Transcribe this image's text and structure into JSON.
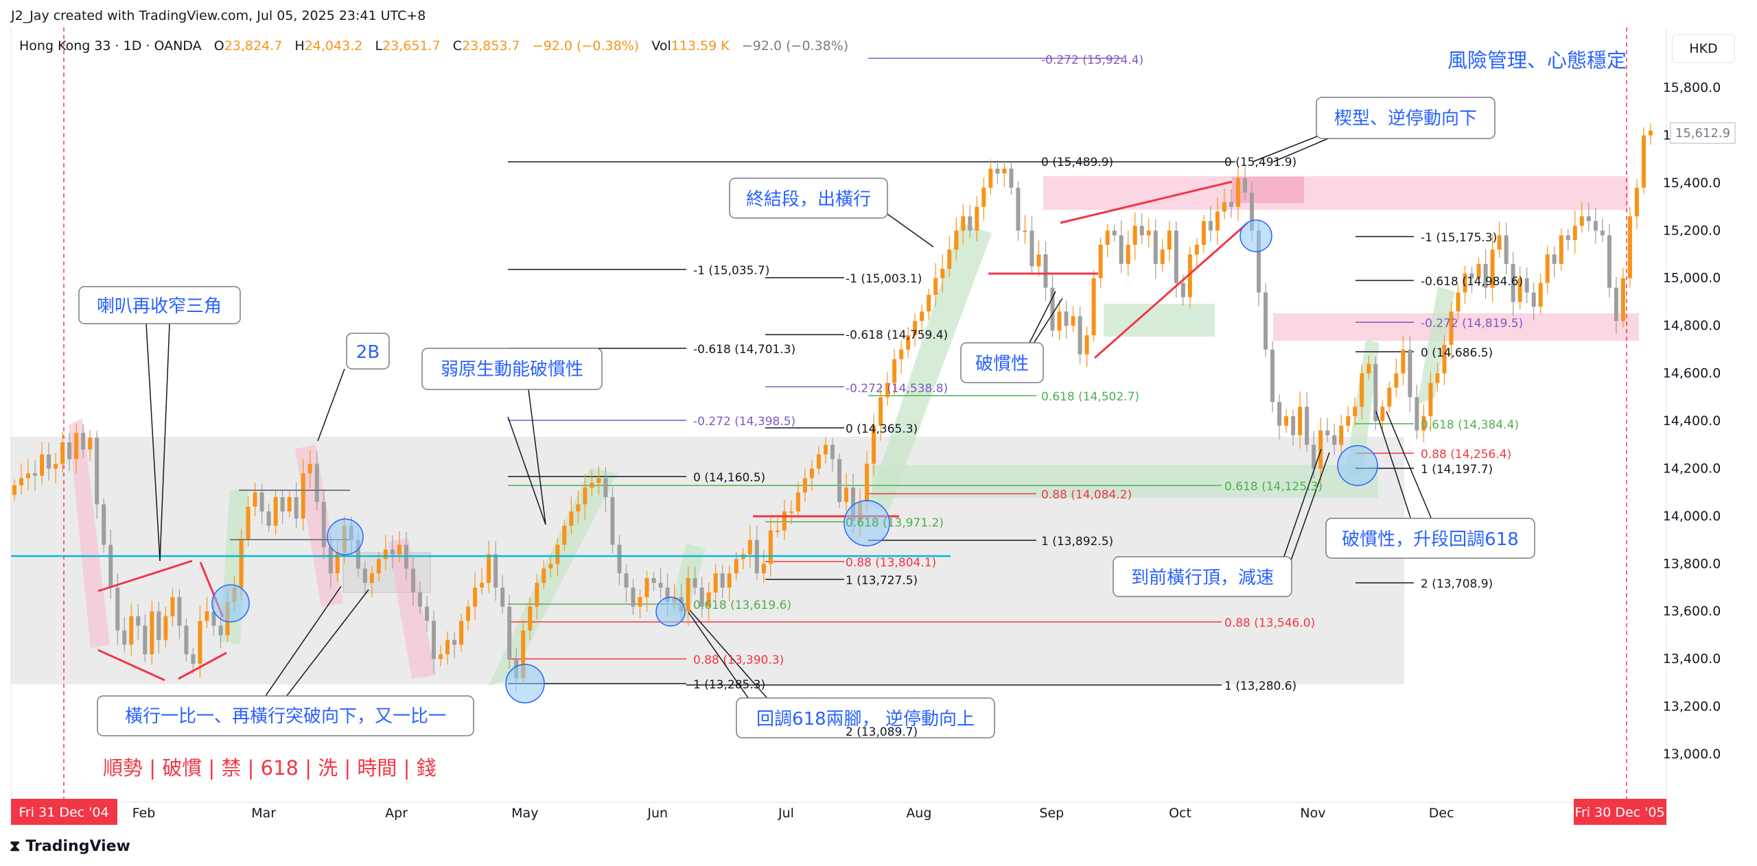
{
  "header": {
    "created": "J2_Jay created with TradingView.com, Jul 05, 2025 23:41 UTC+8",
    "symbol": "Hong Kong 33 · 1D · OANDA",
    "open_label": "O",
    "open": "23,824.7",
    "high_label": "H",
    "high": "24,043.2",
    "low_label": "L",
    "low": "23,651.7",
    "close_label": "C",
    "close": "23,853.7",
    "change": "−92.0 (−0.38%)",
    "vol_label": "Vol",
    "vol": "113.59 K",
    "vol_change": "−92.0 (−0.38%)"
  },
  "currency": "HKD",
  "footer": {
    "logo_text": "TradingView"
  },
  "colors": {
    "up": "#f7931a",
    "down": "#9e9e9e",
    "annotation_text": "#2962ff",
    "red": "#f23645",
    "green": "#4caf50",
    "purple": "#7e57c2",
    "cyan": "#00bcd4"
  },
  "chart_data": {
    "type": "candlestick",
    "ylim": [
      12850,
      15950
    ],
    "y_ticks": [
      "15,800.0",
      "15,600.0",
      "15,400.0",
      "15,200.0",
      "15,000.0",
      "14,800.0",
      "14,600.0",
      "14,400.0",
      "14,200.0",
      "14,000.0",
      "13,800.0",
      "13,600.0",
      "13,400.0",
      "13,200.0",
      "13,000.0"
    ],
    "y_tick_values": [
      15800,
      15600,
      15400,
      15200,
      15000,
      14800,
      14600,
      14400,
      14200,
      14000,
      13800,
      13600,
      13400,
      13200,
      13000
    ],
    "x_ticks": [
      "Feb",
      "Mar",
      "Apr",
      "May",
      "Jun",
      "Jul",
      "Aug",
      "Sep",
      "Oct",
      "Nov",
      "Dec"
    ],
    "x_tick_days": [
      31,
      59,
      90,
      120,
      151,
      181,
      212,
      243,
      273,
      304,
      334
    ],
    "start_label": "Fri 31 Dec '04",
    "end_label": "Fri 30 Dec '05",
    "last_price": "15,612.9",
    "last_value": 15612.9,
    "closes": [
      [
        0,
        14130
      ],
      [
        1,
        14160
      ],
      [
        2,
        14180
      ],
      [
        3,
        14170
      ],
      [
        4,
        14260
      ],
      [
        5,
        14200
      ],
      [
        6,
        14220
      ],
      [
        7,
        14310
      ],
      [
        8,
        14240
      ],
      [
        9,
        14350
      ],
      [
        10,
        14280
      ],
      [
        11,
        14330
      ],
      [
        12,
        14050
      ],
      [
        13,
        13880
      ],
      [
        14,
        13700
      ],
      [
        15,
        13520
      ],
      [
        16,
        13460
      ],
      [
        17,
        13580
      ],
      [
        18,
        13540
      ],
      [
        19,
        13420
      ],
      [
        20,
        13600
      ],
      [
        21,
        13480
      ],
      [
        22,
        13580
      ],
      [
        23,
        13660
      ],
      [
        24,
        13540
      ],
      [
        25,
        13420
      ],
      [
        26,
        13380
      ],
      [
        27,
        13560
      ],
      [
        28,
        13600
      ],
      [
        29,
        13540
      ],
      [
        30,
        13500
      ],
      [
        31,
        13640
      ],
      [
        32,
        13700
      ],
      [
        33,
        13900
      ],
      [
        34,
        14040
      ],
      [
        35,
        14100
      ],
      [
        36,
        14020
      ],
      [
        37,
        13960
      ],
      [
        38,
        14080
      ],
      [
        39,
        14020
      ],
      [
        40,
        14080
      ],
      [
        41,
        13990
      ],
      [
        42,
        14180
      ],
      [
        43,
        14220
      ],
      [
        44,
        14060
      ],
      [
        45,
        13870
      ],
      [
        46,
        13760
      ],
      [
        47,
        13850
      ],
      [
        48,
        13960
      ],
      [
        49,
        13900
      ],
      [
        50,
        13780
      ],
      [
        51,
        13720
      ],
      [
        52,
        13760
      ],
      [
        53,
        13820
      ],
      [
        54,
        13860
      ],
      [
        55,
        13840
      ],
      [
        56,
        13880
      ],
      [
        57,
        13780
      ],
      [
        58,
        13680
      ],
      [
        59,
        13620
      ],
      [
        60,
        13560
      ],
      [
        61,
        13400
      ],
      [
        62,
        13420
      ],
      [
        63,
        13480
      ],
      [
        64,
        13460
      ],
      [
        65,
        13560
      ],
      [
        66,
        13620
      ],
      [
        67,
        13700
      ],
      [
        68,
        13720
      ],
      [
        69,
        13840
      ],
      [
        70,
        13700
      ],
      [
        71,
        13620
      ],
      [
        72,
        13400
      ],
      [
        73,
        13320
      ],
      [
        74,
        13520
      ],
      [
        75,
        13620
      ],
      [
        76,
        13720
      ],
      [
        77,
        13780
      ],
      [
        78,
        13800
      ],
      [
        79,
        13880
      ],
      [
        80,
        13960
      ],
      [
        81,
        14020
      ],
      [
        82,
        14050
      ],
      [
        83,
        14120
      ],
      [
        84,
        14140
      ],
      [
        85,
        14160
      ],
      [
        86,
        14080
      ],
      [
        87,
        13880
      ],
      [
        88,
        13760
      ],
      [
        89,
        13700
      ],
      [
        90,
        13620
      ],
      [
        91,
        13660
      ],
      [
        92,
        13740
      ],
      [
        93,
        13720
      ],
      [
        94,
        13700
      ],
      [
        95,
        13640
      ],
      [
        96,
        13660
      ],
      [
        97,
        13600
      ],
      [
        98,
        13740
      ],
      [
        99,
        13700
      ],
      [
        100,
        13620
      ],
      [
        101,
        13680
      ],
      [
        102,
        13760
      ],
      [
        103,
        13700
      ],
      [
        104,
        13760
      ],
      [
        105,
        13820
      ],
      [
        106,
        13840
      ],
      [
        107,
        13900
      ],
      [
        108,
        13760
      ],
      [
        109,
        13800
      ],
      [
        110,
        13940
      ],
      [
        111,
        13940
      ],
      [
        112,
        14020
      ],
      [
        113,
        14020
      ],
      [
        114,
        14100
      ],
      [
        115,
        14160
      ],
      [
        116,
        14200
      ],
      [
        117,
        14260
      ],
      [
        118,
        14300
      ],
      [
        119,
        14240
      ],
      [
        120,
        14060
      ],
      [
        121,
        14120
      ],
      [
        122,
        13980
      ],
      [
        123,
        14060
      ],
      [
        124,
        14220
      ],
      [
        125,
        14380
      ],
      [
        126,
        14500
      ],
      [
        127,
        14560
      ],
      [
        128,
        14660
      ],
      [
        129,
        14700
      ],
      [
        130,
        14760
      ],
      [
        131,
        14820
      ],
      [
        132,
        14860
      ],
      [
        133,
        14930
      ],
      [
        134,
        15000
      ],
      [
        135,
        15040
      ],
      [
        136,
        15120
      ],
      [
        137,
        15200
      ],
      [
        138,
        15260
      ],
      [
        139,
        15200
      ],
      [
        140,
        15300
      ],
      [
        141,
        15380
      ],
      [
        142,
        15460
      ],
      [
        143,
        15440
      ],
      [
        144,
        15460
      ],
      [
        145,
        15380
      ],
      [
        146,
        15200
      ],
      [
        147,
        15200
      ],
      [
        148,
        15050
      ],
      [
        149,
        15100
      ],
      [
        150,
        14960
      ],
      [
        151,
        14780
      ],
      [
        152,
        14860
      ],
      [
        153,
        14800
      ],
      [
        154,
        14840
      ],
      [
        155,
        14680
      ],
      [
        156,
        14760
      ],
      [
        157,
        15000
      ],
      [
        158,
        15140
      ],
      [
        159,
        15200
      ],
      [
        160,
        15180
      ],
      [
        161,
        15060
      ],
      [
        162,
        15140
      ],
      [
        163,
        15220
      ],
      [
        164,
        15180
      ],
      [
        165,
        15200
      ],
      [
        166,
        15060
      ],
      [
        167,
        15120
      ],
      [
        168,
        15200
      ],
      [
        169,
        14980
      ],
      [
        170,
        14920
      ],
      [
        171,
        15100
      ],
      [
        172,
        15140
      ],
      [
        173,
        15240
      ],
      [
        174,
        15200
      ],
      [
        175,
        15280
      ],
      [
        176,
        15320
      ],
      [
        177,
        15300
      ],
      [
        178,
        15420
      ],
      [
        179,
        15360
      ],
      [
        180,
        15200
      ],
      [
        181,
        14940
      ],
      [
        182,
        14700
      ],
      [
        183,
        14480
      ],
      [
        184,
        14380
      ],
      [
        185,
        14420
      ],
      [
        186,
        14340
      ],
      [
        187,
        14460
      ],
      [
        188,
        14300
      ],
      [
        189,
        14200
      ],
      [
        190,
        14360
      ],
      [
        191,
        14340
      ],
      [
        192,
        14300
      ],
      [
        193,
        14380
      ],
      [
        194,
        14420
      ],
      [
        195,
        14460
      ],
      [
        196,
        14600
      ],
      [
        197,
        14640
      ],
      [
        198,
        14400
      ],
      [
        199,
        14460
      ],
      [
        200,
        14540
      ],
      [
        201,
        14600
      ],
      [
        202,
        14700
      ],
      [
        203,
        14500
      ],
      [
        204,
        14360
      ],
      [
        205,
        14420
      ],
      [
        206,
        14560
      ],
      [
        207,
        14600
      ],
      [
        208,
        14720
      ],
      [
        209,
        14860
      ],
      [
        210,
        14940
      ],
      [
        211,
        15020
      ],
      [
        212,
        15000
      ],
      [
        213,
        15060
      ],
      [
        214,
        14960
      ],
      [
        215,
        15120
      ],
      [
        216,
        15180
      ],
      [
        217,
        15060
      ],
      [
        218,
        14900
      ],
      [
        219,
        15000
      ],
      [
        220,
        14940
      ],
      [
        221,
        14880
      ],
      [
        222,
        14980
      ],
      [
        223,
        15100
      ],
      [
        224,
        15060
      ],
      [
        225,
        15180
      ],
      [
        226,
        15160
      ],
      [
        227,
        15220
      ],
      [
        228,
        15260
      ],
      [
        229,
        15240
      ],
      [
        230,
        15200
      ],
      [
        231,
        15180
      ],
      [
        232,
        14960
      ],
      [
        233,
        14820
      ],
      [
        234,
        15000
      ],
      [
        235,
        15260
      ],
      [
        236,
        15380
      ],
      [
        237,
        15600
      ],
      [
        238,
        15620
      ]
    ]
  },
  "fib_labels": {
    "f1": "-0.272 (15,924.4)",
    "f2": "0 (15,489.9)",
    "f3": "0 (15,491.9)",
    "f4": "-1 (15,035.7)",
    "f5": "-1 (15,003.1)",
    "f6": "-0.618 (14,759.4)",
    "f7": "-0.618 (14,701.3)",
    "f8": "-0.272 (14,538.8)",
    "f9": "0.618 (14,502.7)",
    "f10": "-0.272 (14,398.5)",
    "f11": "0 (14,365.3)",
    "f12": "0 (14,160.5)",
    "f13": "0.88 (14,084.2)",
    "f14": "0.618 (14,125.3)",
    "f15": "0.618 (13,971.2)",
    "f16": "1 (13,892.5)",
    "f17": "0.88 (13,804.1)",
    "f18": "1 (13,727.5)",
    "f19": "0.618 (13,619.6)",
    "f20": "0.88 (13,546.0)",
    "f21": "0.88 (13,390.3)",
    "f22": "1 (13,285.3)",
    "f23": "1 (13,280.6)",
    "f24": "2 (13,089.7)",
    "f25": "-1 (15,175.3)",
    "f26": "-0.618 (14,984.6)",
    "f27": "-0.272 (14,819.5)",
    "f28": "0 (14,686.5)",
    "f29": "0.618 (14,384.4)",
    "f30": "0.88 (14,256.4)",
    "f31": "1 (14,197.7)",
    "f32": "2 (13,708.9)"
  },
  "annotations": {
    "top_right": "風險管理、心態穩定",
    "wedge": "楔型、逆停動向下",
    "end_stage": "終結段，出橫行",
    "horn": "喇叭再收窄三角",
    "twoB": "2B",
    "weak": "弱原生動能破慣性",
    "break_inertia": "破慣性",
    "range": "橫行一比一、再橫行突破向下，又一比一",
    "pullback": "回調618兩腳， 逆停動向上",
    "prev_top": "到前橫行頂，減速",
    "break618": "破慣性，升段回調618",
    "motto": "順勢 | 破慣 | 禁 | 618 | 洗 | 時間 | 錢"
  }
}
